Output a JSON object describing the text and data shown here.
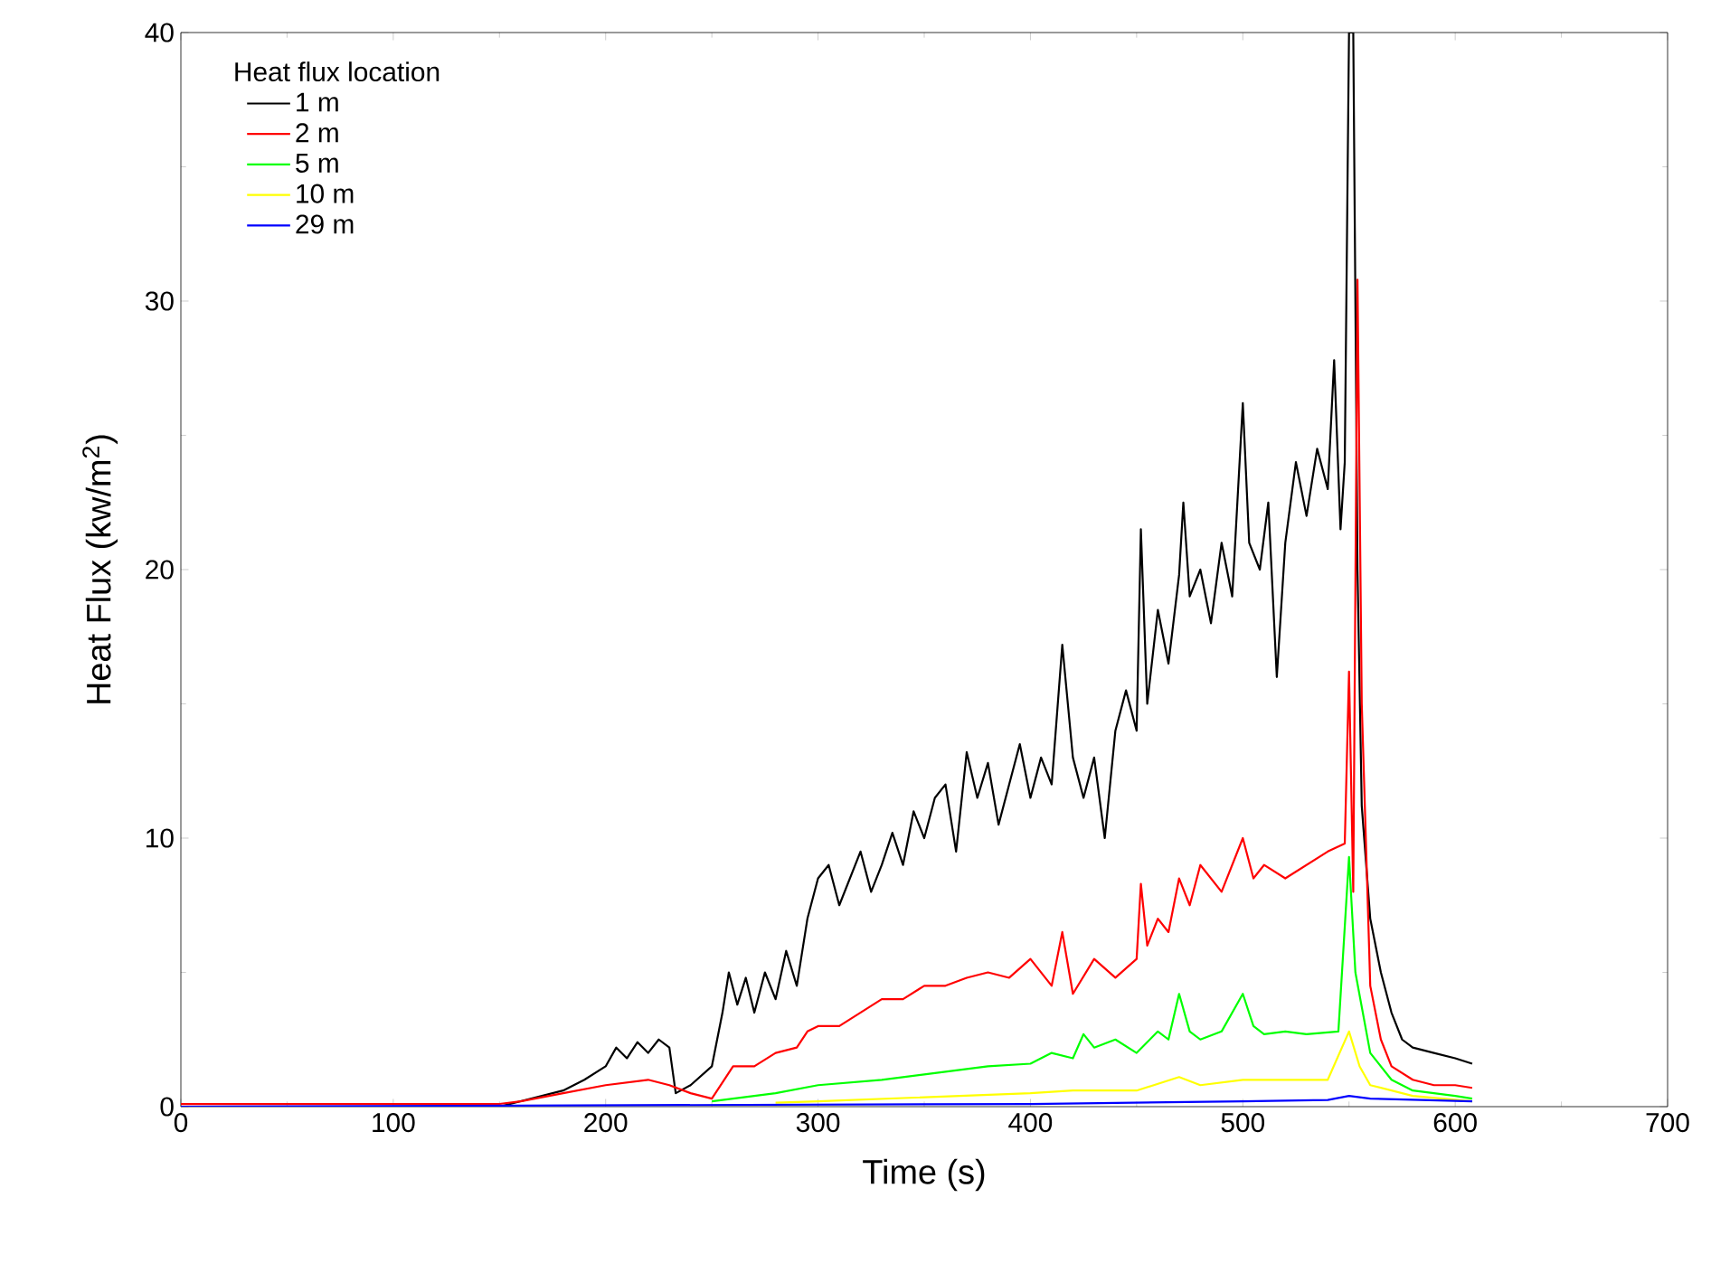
{
  "chart_data": {
    "type": "line",
    "xlabel": "Time (s)",
    "ylabel": "Heat Flux (kw/m$^{2}$)",
    "legend_title": "Heat flux location",
    "legend": "top left",
    "marker": "none",
    "line_style": "solid",
    "grid": false,
    "xlim": [
      0,
      700
    ],
    "ylim": [
      0,
      40
    ],
    "xticks": [
      0,
      100,
      200,
      300,
      400,
      500,
      600,
      700
    ],
    "yticks": [
      0,
      10,
      20,
      30,
      40
    ],
    "series": [
      {
        "name": "1 m",
        "color": "#000000",
        "x": [
          0,
          50,
          100,
          150,
          160,
          180,
          190,
          200,
          205,
          210,
          215,
          220,
          225,
          230,
          233,
          240,
          250,
          255,
          258,
          262,
          266,
          270,
          275,
          280,
          285,
          290,
          295,
          300,
          305,
          310,
          315,
          320,
          325,
          330,
          335,
          340,
          345,
          350,
          355,
          360,
          365,
          370,
          375,
          380,
          385,
          390,
          395,
          400,
          405,
          410,
          415,
          420,
          425,
          430,
          435,
          440,
          445,
          450,
          452,
          455,
          460,
          465,
          470,
          472,
          475,
          480,
          485,
          490,
          495,
          500,
          503,
          508,
          512,
          516,
          520,
          525,
          530,
          535,
          540,
          543,
          546,
          548,
          550,
          552,
          554,
          556,
          560,
          565,
          570,
          575,
          580,
          590,
          600,
          608
        ],
        "values": [
          0,
          0,
          0,
          0,
          0.2,
          0.6,
          1.0,
          1.5,
          2.2,
          1.8,
          2.4,
          2.0,
          2.5,
          2.2,
          0.5,
          0.8,
          1.5,
          3.5,
          5.0,
          3.8,
          4.8,
          3.5,
          5.0,
          4.0,
          5.8,
          4.5,
          7.0,
          8.5,
          9.0,
          7.5,
          8.5,
          9.5,
          8.0,
          9.0,
          10.2,
          9.0,
          11.0,
          10.0,
          11.5,
          12.0,
          9.5,
          13.2,
          11.5,
          12.8,
          10.5,
          12.0,
          13.5,
          11.5,
          13.0,
          12.0,
          17.2,
          13.0,
          11.5,
          13.0,
          10.0,
          14.0,
          15.5,
          14.0,
          21.5,
          15.0,
          18.5,
          16.5,
          19.8,
          22.5,
          19.0,
          20.0,
          18.0,
          21.0,
          19.0,
          26.2,
          21.0,
          20.0,
          22.5,
          16.0,
          21.0,
          24.0,
          22.0,
          24.5,
          23.0,
          27.8,
          21.5,
          24.0,
          40,
          40,
          20,
          11.2,
          7.0,
          5.0,
          3.5,
          2.5,
          2.2,
          2.0,
          1.8,
          1.6
        ]
      },
      {
        "name": "2 m",
        "color": "#ff0000",
        "x": [
          0,
          50,
          100,
          150,
          160,
          180,
          200,
          220,
          230,
          240,
          250,
          260,
          270,
          280,
          290,
          295,
          300,
          310,
          320,
          330,
          340,
          350,
          360,
          370,
          380,
          390,
          400,
          410,
          415,
          420,
          430,
          440,
          450,
          452,
          455,
          460,
          465,
          470,
          475,
          480,
          490,
          500,
          505,
          510,
          520,
          530,
          540,
          548,
          550,
          552,
          554,
          556,
          560,
          565,
          570,
          580,
          590,
          600,
          608
        ],
        "values": [
          0.1,
          0.1,
          0.1,
          0.1,
          0.2,
          0.5,
          0.8,
          1.0,
          0.8,
          0.5,
          0.3,
          1.5,
          1.5,
          2.0,
          2.2,
          2.8,
          3.0,
          3.0,
          3.5,
          4.0,
          4.0,
          4.5,
          4.5,
          4.8,
          5.0,
          4.8,
          5.5,
          4.5,
          6.5,
          4.2,
          5.5,
          4.8,
          5.5,
          8.3,
          6.0,
          7.0,
          6.5,
          8.5,
          7.5,
          9.0,
          8.0,
          10.0,
          8.5,
          9.0,
          8.5,
          9.0,
          9.5,
          9.8,
          16.2,
          8.0,
          30.8,
          15.0,
          4.5,
          2.5,
          1.5,
          1.0,
          0.8,
          0.8,
          0.7
        ]
      },
      {
        "name": "5 m",
        "color": "#00ff00",
        "x": [
          250,
          280,
          300,
          330,
          350,
          380,
          400,
          410,
          420,
          425,
          430,
          440,
          450,
          460,
          465,
          470,
          475,
          480,
          490,
          500,
          505,
          510,
          520,
          530,
          545,
          550,
          553,
          560,
          570,
          580,
          600,
          608
        ],
        "values": [
          0.2,
          0.5,
          0.8,
          1.0,
          1.2,
          1.5,
          1.6,
          2.0,
          1.8,
          2.7,
          2.2,
          2.5,
          2.0,
          2.8,
          2.5,
          4.2,
          2.8,
          2.5,
          2.8,
          4.2,
          3.0,
          2.7,
          2.8,
          2.7,
          2.8,
          9.3,
          5.0,
          2.0,
          1.0,
          0.6,
          0.4,
          0.3
        ]
      },
      {
        "name": "10 m",
        "color": "#ffff00",
        "x": [
          280,
          300,
          350,
          400,
          420,
          450,
          470,
          480,
          500,
          540,
          550,
          555,
          560,
          580,
          608
        ],
        "values": [
          0.15,
          0.2,
          0.35,
          0.5,
          0.6,
          0.6,
          1.1,
          0.8,
          1.0,
          1.0,
          2.8,
          1.5,
          0.8,
          0.4,
          0.2
        ]
      },
      {
        "name": "29 m",
        "color": "#0000ff",
        "x": [
          0,
          200,
          400,
          500,
          540,
          550,
          560,
          608
        ],
        "values": [
          0,
          0.05,
          0.1,
          0.2,
          0.25,
          0.4,
          0.3,
          0.2
        ]
      }
    ]
  }
}
